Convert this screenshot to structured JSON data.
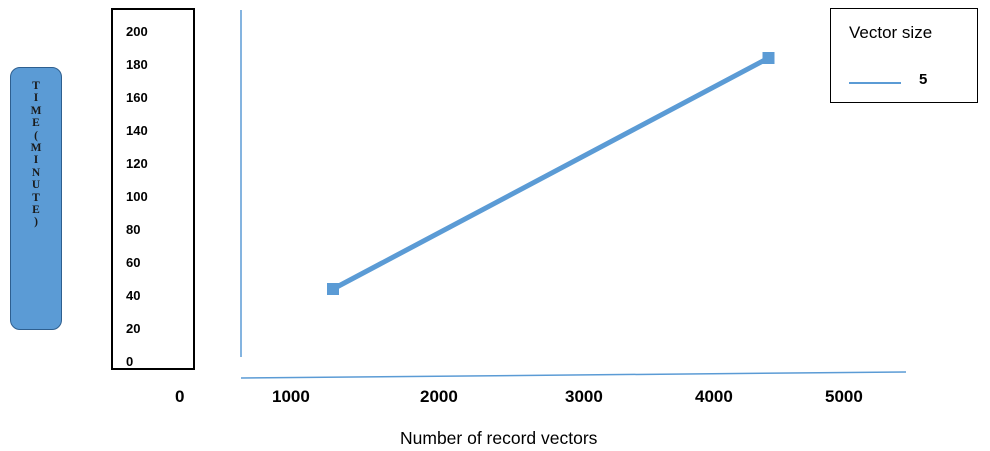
{
  "chart_data": {
    "type": "line",
    "title": "",
    "ylabel": "TIME(MINUTE)",
    "xlabel": "Number of record vectors",
    "ylabel_chars": [
      "T",
      "I",
      "M",
      "E",
      "(",
      "M",
      "I",
      "N",
      "U",
      "T",
      "E",
      ")"
    ],
    "y_ticks": [
      "200",
      "180",
      "160",
      "140",
      "120",
      "100",
      "80",
      "60",
      "40",
      "20",
      "0"
    ],
    "x_ticks": [
      "0",
      "1000",
      "2000",
      "3000",
      "4000",
      "5000"
    ],
    "xlim": [
      0,
      5000
    ],
    "ylim": [
      0,
      200
    ],
    "grid": false,
    "legend_position": "top-right",
    "legend_title": "Vector size",
    "series": [
      {
        "name": "5",
        "color": "#5b9bd5",
        "points": [
          {
            "x": 1100,
            "y": 40
          },
          {
            "x": 4450,
            "y": 180
          }
        ]
      }
    ]
  }
}
